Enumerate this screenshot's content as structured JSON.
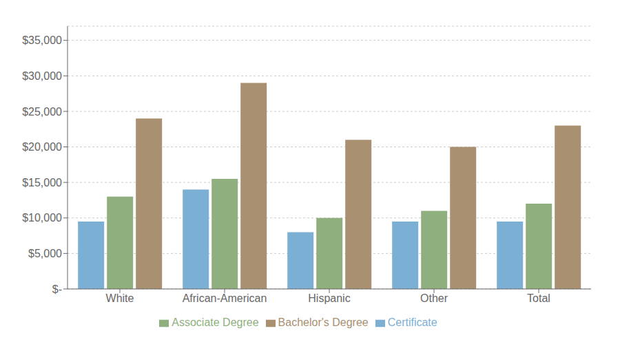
{
  "chart_data": {
    "type": "bar",
    "categories": [
      "White",
      "African-American",
      "Hispanic",
      "Other",
      "Total"
    ],
    "series": [
      {
        "name": "Certificate",
        "color": "#7BAFD4",
        "values": [
          9500,
          14000,
          8000,
          9500,
          9500
        ]
      },
      {
        "name": "Associate Degree",
        "color": "#8FAF7E",
        "values": [
          13000,
          15500,
          10000,
          11000,
          12000
        ]
      },
      {
        "name": "Bachelor's Degree",
        "color": "#A89070",
        "values": [
          24000,
          29000,
          21000,
          20000,
          23000
        ]
      }
    ],
    "ylim": [
      0,
      37000
    ],
    "yticks": [
      {
        "value": 0,
        "label": "$-"
      },
      {
        "value": 5000,
        "label": "$5,000"
      },
      {
        "value": 10000,
        "label": "$10,000"
      },
      {
        "value": 15000,
        "label": "$15,000"
      },
      {
        "value": 20000,
        "label": "$20,000"
      },
      {
        "value": 25000,
        "label": "$25,000"
      },
      {
        "value": 30000,
        "label": "$30,000"
      },
      {
        "value": 35000,
        "label": "$35,000"
      }
    ],
    "grid": true,
    "legend": "bottom"
  }
}
